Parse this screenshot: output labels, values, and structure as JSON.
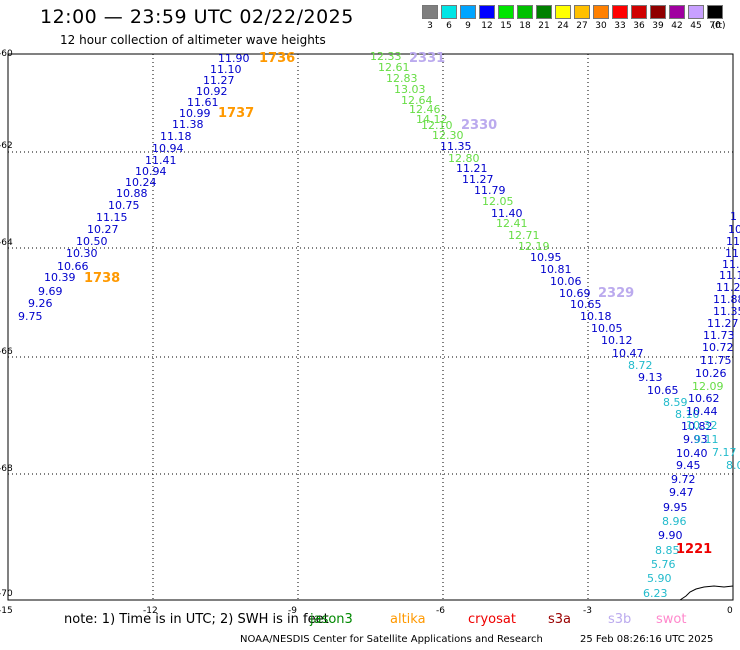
{
  "header": {
    "title": "12:00 — 23:59 UTC 02/22/2025",
    "subtitle": "12 hour collection of altimeter wave heights"
  },
  "legend": {
    "items": [
      {
        "label": "3",
        "color": "#7f7f7f"
      },
      {
        "label": "6",
        "color": "#00e5e5"
      },
      {
        "label": "9",
        "color": "#00a5ff"
      },
      {
        "label": "12",
        "color": "#0000ff"
      },
      {
        "label": "15",
        "color": "#00e500"
      },
      {
        "label": "18",
        "color": "#00c000"
      },
      {
        "label": "21",
        "color": "#008000"
      },
      {
        "label": "24",
        "color": "#ffff00"
      },
      {
        "label": "27",
        "color": "#ffc000"
      },
      {
        "label": "30",
        "color": "#ff8000"
      },
      {
        "label": "33",
        "color": "#ff0000"
      },
      {
        "label": "36",
        "color": "#d00000"
      },
      {
        "label": "39",
        "color": "#900000"
      },
      {
        "label": "42",
        "color": "#a000a0"
      },
      {
        "label": "45",
        "color": "#c8a0ff"
      },
      {
        "label": "70",
        "color": "#000000"
      }
    ],
    "unit": "(ft)"
  },
  "axes": {
    "y_labels": [
      "-60",
      "-62",
      "-64",
      "-66",
      "-68",
      "-70"
    ],
    "x_labels": [
      "-15",
      "-12",
      "-9",
      "-6",
      "-3",
      "0"
    ]
  },
  "colors": {
    "blue": "#0000cc",
    "green": "#66dd44",
    "cyan": "#22bbcc",
    "orange": "#ff9900",
    "lavender": "#bbaaee",
    "red": "#ee0000"
  },
  "track_left": {
    "values": [
      "11.90",
      "11.10",
      "11.27",
      "10.92",
      "11.61",
      "10.99",
      "11.38",
      "11.18",
      "10.94",
      "11.41",
      "10.94",
      "10.24",
      "10.88",
      "10.75",
      "11.15",
      "10.27",
      "10.50",
      "10.30",
      "10.66",
      "10.39",
      "9.69",
      "9.26",
      "9.75"
    ],
    "times": [
      "1736",
      "1737",
      "1738"
    ]
  },
  "track_mid": {
    "values": [
      {
        "v": "12.33",
        "c": "green"
      },
      {
        "v": "12.61",
        "c": "green"
      },
      {
        "v": "12.83",
        "c": "green"
      },
      {
        "v": "13.03",
        "c": "green"
      },
      {
        "v": "12.64",
        "c": "green"
      },
      {
        "v": "12.46",
        "c": "green"
      },
      {
        "v": "14.12",
        "c": "green"
      },
      {
        "v": "12.10",
        "c": "green"
      },
      {
        "v": "12.30",
        "c": "green"
      },
      {
        "v": "11.35",
        "c": "blue"
      },
      {
        "v": "12.80",
        "c": "green"
      },
      {
        "v": "11.21",
        "c": "blue"
      },
      {
        "v": "11.27",
        "c": "blue"
      },
      {
        "v": "11.79",
        "c": "blue"
      },
      {
        "v": "12.05",
        "c": "green"
      },
      {
        "v": "11.40",
        "c": "blue"
      },
      {
        "v": "12.41",
        "c": "green"
      },
      {
        "v": "12.71",
        "c": "green"
      },
      {
        "v": "12.19",
        "c": "green"
      },
      {
        "v": "10.95",
        "c": "blue"
      },
      {
        "v": "10.81",
        "c": "blue"
      },
      {
        "v": "10.06",
        "c": "blue"
      },
      {
        "v": "10.69",
        "c": "blue"
      },
      {
        "v": "10.65",
        "c": "blue"
      },
      {
        "v": "10.18",
        "c": "blue"
      },
      {
        "v": "10.05",
        "c": "blue"
      },
      {
        "v": "10.12",
        "c": "blue"
      },
      {
        "v": "10.47",
        "c": "blue"
      },
      {
        "v": "8.72",
        "c": "cyan"
      },
      {
        "v": "9.13",
        "c": "blue"
      },
      {
        "v": "10.65",
        "c": "blue"
      },
      {
        "v": "8.59",
        "c": "cyan"
      },
      {
        "v": "8.10",
        "c": "cyan"
      },
      {
        "v": "10.82",
        "c": "blue"
      },
      {
        "v": "9.93",
        "c": "blue"
      },
      {
        "v": "10.40",
        "c": "blue"
      },
      {
        "v": "9.45",
        "c": "blue"
      },
      {
        "v": "9.72",
        "c": "blue"
      },
      {
        "v": "9.47",
        "c": "blue"
      },
      {
        "v": "9.95",
        "c": "blue"
      },
      {
        "v": "8.96",
        "c": "cyan"
      },
      {
        "v": "9.90",
        "c": "blue"
      },
      {
        "v": "8.85",
        "c": "cyan"
      },
      {
        "v": "5.76",
        "c": "cyan"
      },
      {
        "v": "5.90",
        "c": "cyan"
      },
      {
        "v": "6.23",
        "c": "cyan"
      }
    ],
    "times": [
      "2331",
      "2330",
      "2329"
    ]
  },
  "track_right": {
    "values": [
      {
        "v": "1",
        "c": "blue"
      },
      {
        "v": "10",
        "c": "blue"
      },
      {
        "v": "11",
        "c": "blue"
      },
      {
        "v": "11",
        "c": "blue"
      },
      {
        "v": "11.",
        "c": "blue"
      },
      {
        "v": "11.1",
        "c": "blue"
      },
      {
        "v": "11.2",
        "c": "blue"
      },
      {
        "v": "11.88",
        "c": "blue"
      },
      {
        "v": "11.35",
        "c": "blue"
      },
      {
        "v": "11.27",
        "c": "blue"
      },
      {
        "v": "11.73",
        "c": "blue"
      },
      {
        "v": "10.72",
        "c": "blue"
      },
      {
        "v": "11.75",
        "c": "blue"
      },
      {
        "v": "10.26",
        "c": "blue"
      },
      {
        "v": "12.09",
        "c": "green"
      },
      {
        "v": "10.62",
        "c": "blue"
      },
      {
        "v": "10.44",
        "c": "blue"
      },
      {
        "v": "10.32",
        "c": "cyan"
      },
      {
        "v": "9.11",
        "c": "cyan"
      },
      {
        "v": "7.17",
        "c": "cyan"
      },
      {
        "v": "8.0",
        "c": "cyan"
      }
    ],
    "time": "1221"
  },
  "footer": {
    "note": "note:  1) Time is in UTC; 2) SWH is in feet",
    "satellites": [
      {
        "name": "jason3",
        "color": "#008800"
      },
      {
        "name": "altika",
        "color": "#ff9900"
      },
      {
        "name": "cryosat",
        "color": "#ee0000"
      },
      {
        "name": "s3a",
        "color": "#990000"
      },
      {
        "name": "s3b",
        "color": "#bbaaee"
      },
      {
        "name": "swot",
        "color": "#ff88cc"
      }
    ],
    "credit": "NOAA/NESDIS Center for Satellite Applications and Research",
    "timestamp": "25 Feb 08:26:16 UTC 2025"
  }
}
